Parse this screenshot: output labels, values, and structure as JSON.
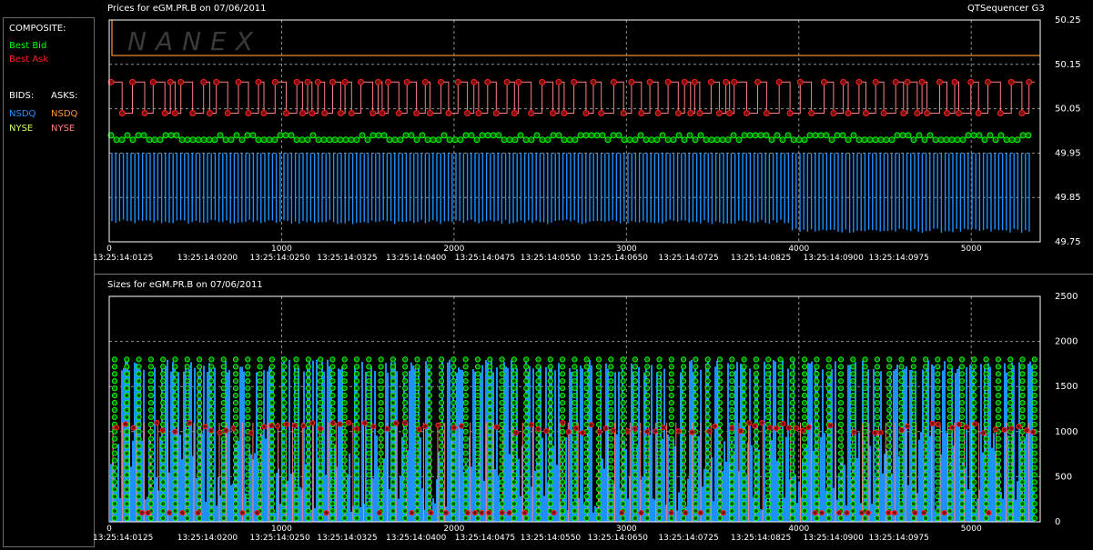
{
  "app_title": "QTSequencer G3",
  "watermark": "NANEX",
  "legend": {
    "composite_label": "COMPOSITE:",
    "best_bid": "Best Bid",
    "best_ask": "Best Ask",
    "bids_label": "BIDS:",
    "asks_label": "ASKS:",
    "bid_nsdq": "NSDQ",
    "bid_nyse": "NYSE",
    "ask_nsdq": "NSDQ",
    "ask_nyse": "NYSE"
  },
  "colors": {
    "best_bid": "#00ff00",
    "best_ask": "#ff2020",
    "nsdq_bid": "#1e90ff",
    "nyse_bid": "#ccff66",
    "nsdq_ask": "#ff9933",
    "nyse_ask": "#ff8080",
    "plot_border": "#ffffff",
    "grid": "#909090"
  },
  "chart_data": [
    {
      "type": "line",
      "title": "Prices for  eGM.PR.B  on  07/06/2011",
      "x_tick_labels": [
        "0",
        "1000",
        "2000",
        "3000",
        "4000",
        "5000"
      ],
      "x_ticks": [
        0,
        1000,
        2000,
        3000,
        4000,
        5000
      ],
      "time_labels": [
        "13:25:14:0125",
        "13:25:14:0200",
        "13:25:14:0250",
        "13:25:14:0325",
        "13:25:14:0400",
        "13:25:14:0475",
        "13:25:14:0550",
        "13:25:14:0650",
        "13:25:14:0725",
        "13:25:14:0825",
        "13:25:14:0900",
        "13:25:14:0975"
      ],
      "time_positions": [
        80,
        570,
        990,
        1380,
        1780,
        2180,
        2560,
        2950,
        3360,
        3780,
        4200,
        4580
      ],
      "y_tick_labels": [
        "50.25",
        "50.15",
        "50.05",
        "49.95",
        "49.85",
        "49.75"
      ],
      "y_ticks": [
        50.25,
        50.15,
        50.05,
        49.95,
        49.85,
        49.75
      ],
      "xlim": [
        0,
        5400
      ],
      "ylim": [
        49.75,
        50.25
      ],
      "grid": true,
      "series": [
        {
          "name": "Best Bid",
          "role": "best_bid",
          "values_typical": [
            49.98,
            49.99
          ],
          "count_approx": 5350
        },
        {
          "name": "Best Ask",
          "role": "best_ask",
          "values_typical": [
            50.04,
            50.11
          ],
          "count_approx": 5350
        },
        {
          "name": "NSDQ",
          "role": "nsdq_bid",
          "values_typical": [
            49.77,
            49.95
          ],
          "count_approx": 5350
        },
        {
          "name": "NSDQ",
          "role": "nsdq_ask",
          "values_typical": [
            50.17
          ],
          "count_approx": 5350
        }
      ]
    },
    {
      "type": "bar",
      "title": "Sizes for  eGM.PR.B  on  07/06/2011",
      "x_tick_labels": [
        "0",
        "1000",
        "2000",
        "3000",
        "4000",
        "5000"
      ],
      "x_ticks": [
        0,
        1000,
        2000,
        3000,
        4000,
        5000
      ],
      "time_labels": [
        "13:25:14:0125",
        "13:25:14:0200",
        "13:25:14:0250",
        "13:25:14:0325",
        "13:25:14:0400",
        "13:25:14:0475",
        "13:25:14:0550",
        "13:25:14:0650",
        "13:25:14:0725",
        "13:25:14:0825",
        "13:25:14:0900",
        "13:25:14:0975"
      ],
      "time_positions": [
        80,
        570,
        990,
        1380,
        1780,
        2180,
        2560,
        2950,
        3360,
        3780,
        4200,
        4580
      ],
      "y_tick_labels": [
        "2500",
        "2000",
        "1500",
        "1000",
        "500",
        "0"
      ],
      "y_ticks": [
        2500,
        2000,
        1500,
        1000,
        500,
        0
      ],
      "xlim": [
        0,
        5400
      ],
      "ylim": [
        0,
        2500
      ],
      "grid": true,
      "series": [
        {
          "name": "Best Bid",
          "role": "best_bid",
          "values_typical": [
            1800,
            1000,
            100
          ],
          "count_approx": 5350
        },
        {
          "name": "Best Ask",
          "role": "best_ask",
          "values_typical": [
            1100,
            100
          ],
          "count_approx": 5350
        },
        {
          "name": "NSDQ",
          "role": "nsdq_bid",
          "values_typical": [
            1800,
            100
          ],
          "count_approx": 5350
        }
      ]
    }
  ]
}
